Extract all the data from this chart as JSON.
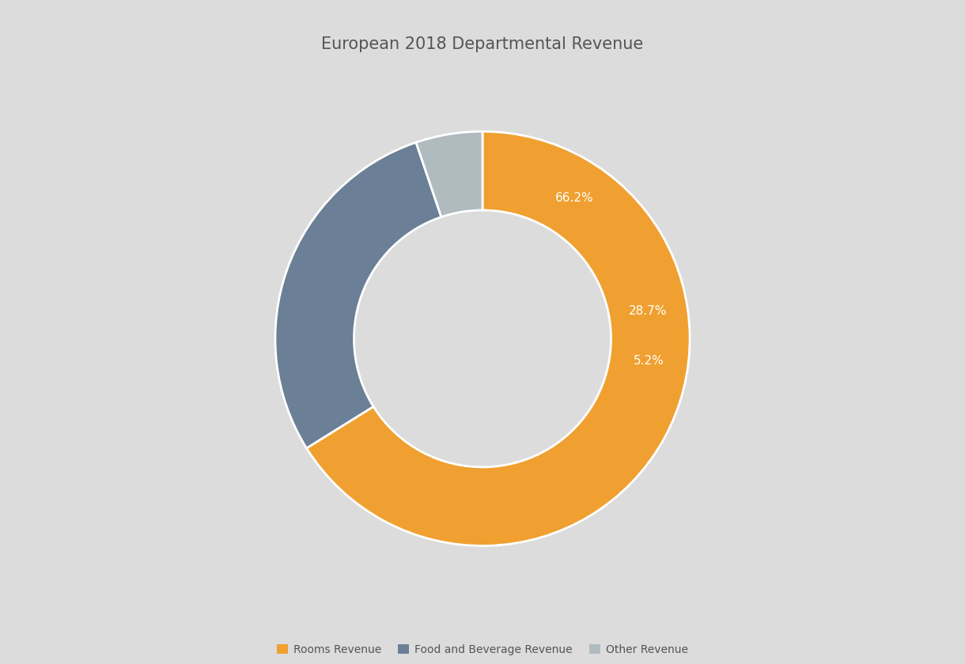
{
  "title": "European 2018 Departmental Revenue",
  "slices": [
    66.2,
    28.7,
    5.2
  ],
  "labels": [
    "66.2%",
    "28.7%",
    "5.2%"
  ],
  "colors": [
    "#F0A030",
    "#6B7F96",
    "#B0BBBF"
  ],
  "legend_labels": [
    "Rooms Revenue",
    "Food and Beverage Revenue",
    "Other Revenue"
  ],
  "background_color": "#DCDCDC",
  "wedge_edge_color": "#FFFFFF",
  "wedge_linewidth": 2.0,
  "donut_width": 0.38,
  "title_fontsize": 15,
  "label_fontsize": 11,
  "legend_fontsize": 10,
  "start_angle": 90,
  "label_color_on_wedge": "#FFFFFF",
  "label_color_outside": "#555555"
}
